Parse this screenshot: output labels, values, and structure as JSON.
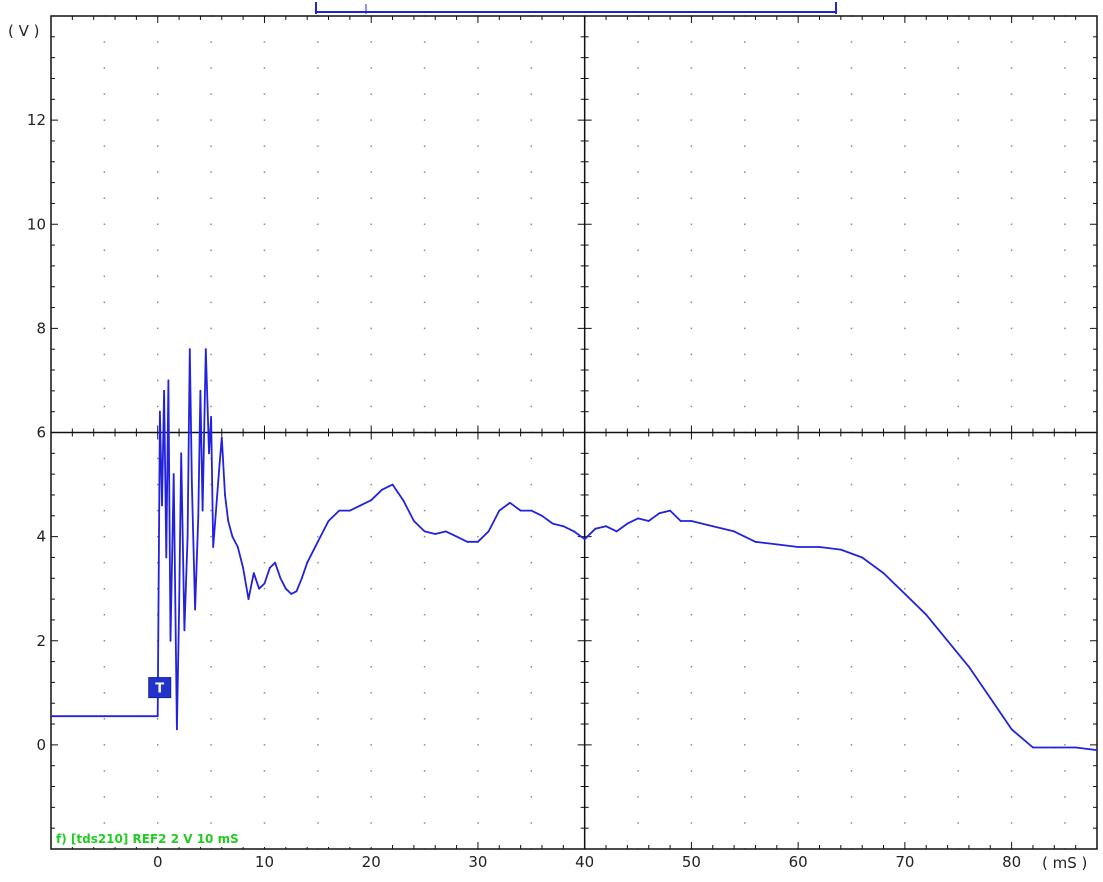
{
  "chart_data": {
    "type": "line",
    "xlabel": "( mS )",
    "ylabel": "( V )",
    "xlim": [
      -10,
      88
    ],
    "ylim": [
      -2,
      14
    ],
    "x_ticks": [
      0,
      10,
      20,
      30,
      40,
      50,
      60,
      70,
      80
    ],
    "y_ticks": [
      0,
      2,
      4,
      6,
      8,
      10,
      12
    ],
    "grid": true,
    "trigger_marker": {
      "label": "T",
      "x": 0,
      "y": 1.1
    },
    "status_line": "f) [tds210] REF2  2  V    10 mS",
    "series": [
      {
        "color": "#2222dd",
        "x": [
          -10,
          -5,
          -1,
          0,
          0.2,
          0.4,
          0.6,
          0.8,
          1.0,
          1.2,
          1.5,
          1.8,
          2.0,
          2.2,
          2.5,
          2.8,
          3.0,
          3.2,
          3.5,
          3.8,
          4.0,
          4.2,
          4.5,
          4.8,
          5.0,
          5.2,
          5.5,
          5.8,
          6.0,
          6.3,
          6.6,
          7.0,
          7.5,
          8.0,
          8.5,
          9.0,
          9.5,
          10,
          10.5,
          11,
          11.5,
          12,
          12.5,
          13,
          13.5,
          14,
          15,
          16,
          17,
          18,
          19,
          20,
          21,
          22,
          23,
          24,
          25,
          26,
          27,
          28,
          29,
          30,
          31,
          32,
          33,
          34,
          35,
          36,
          37,
          38,
          39,
          40,
          41,
          42,
          43,
          44,
          45,
          46,
          47,
          48,
          49,
          50,
          52,
          54,
          56,
          58,
          60,
          62,
          64,
          66,
          68,
          70,
          72,
          74,
          76,
          78,
          80,
          82,
          84,
          86,
          88
        ],
        "y": [
          0.55,
          0.55,
          0.55,
          0.55,
          6.4,
          4.6,
          6.8,
          3.6,
          7.0,
          2.0,
          5.2,
          0.3,
          2.6,
          5.6,
          2.2,
          4.0,
          7.6,
          5.0,
          2.6,
          4.4,
          6.8,
          4.5,
          7.6,
          5.6,
          6.3,
          3.8,
          4.6,
          5.4,
          5.9,
          4.8,
          4.3,
          4.0,
          3.8,
          3.4,
          2.8,
          3.3,
          3.0,
          3.1,
          3.4,
          3.5,
          3.2,
          3.0,
          2.9,
          2.95,
          3.2,
          3.5,
          3.9,
          4.3,
          4.5,
          4.5,
          4.6,
          4.7,
          4.9,
          5.0,
          4.7,
          4.3,
          4.1,
          4.05,
          4.1,
          4.0,
          3.9,
          3.9,
          4.1,
          4.5,
          4.65,
          4.5,
          4.5,
          4.4,
          4.25,
          4.2,
          4.1,
          3.95,
          4.15,
          4.2,
          4.1,
          4.25,
          4.35,
          4.3,
          4.45,
          4.5,
          4.3,
          4.3,
          4.2,
          4.1,
          3.9,
          3.85,
          3.8,
          3.8,
          3.75,
          3.6,
          3.3,
          2.9,
          2.5,
          2.0,
          1.5,
          0.9,
          0.3,
          -0.05,
          -0.05,
          -0.05,
          -0.1
        ]
      }
    ]
  }
}
